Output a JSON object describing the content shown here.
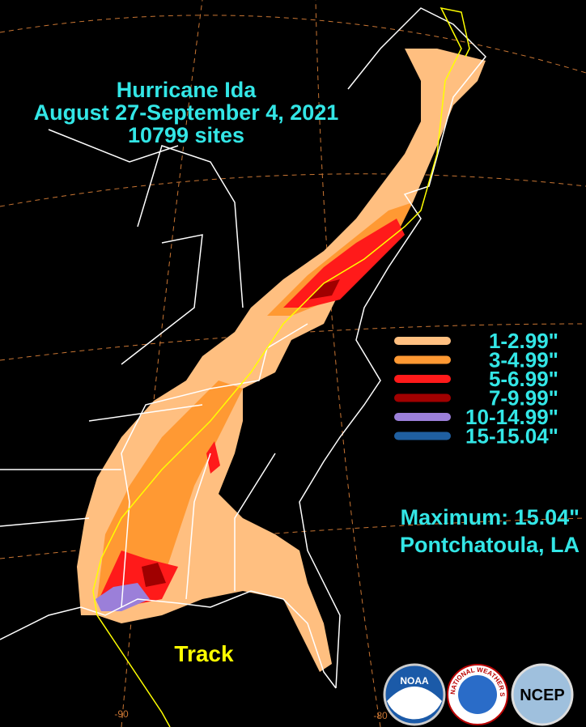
{
  "title": [
    "Hurricane Ida",
    "August 27-September 4, 2021",
    "10799 sites"
  ],
  "legend": [
    {
      "label": "1-2.99\"",
      "color": "#ffbf80"
    },
    {
      "label": "3-4.99\"",
      "color": "#ff9933"
    },
    {
      "label": "5-6.99\"",
      "color": "#ff1a1a"
    },
    {
      "label": "7-9.99\"",
      "color": "#a00000"
    },
    {
      "label": "10-14.99\"",
      "color": "#9b7fd9"
    },
    {
      "label": "15-15.04\"",
      "color": "#1f5fa0"
    }
  ],
  "maximum": [
    "Maximum: 15.04\"",
    "Pontchatoula, LA"
  ],
  "track_label": "Track",
  "longitude_labels": [
    "-90",
    "-80"
  ],
  "logos": [
    "NOAA",
    "NATIONAL WEATHER SERVICE",
    "NCEP"
  ]
}
